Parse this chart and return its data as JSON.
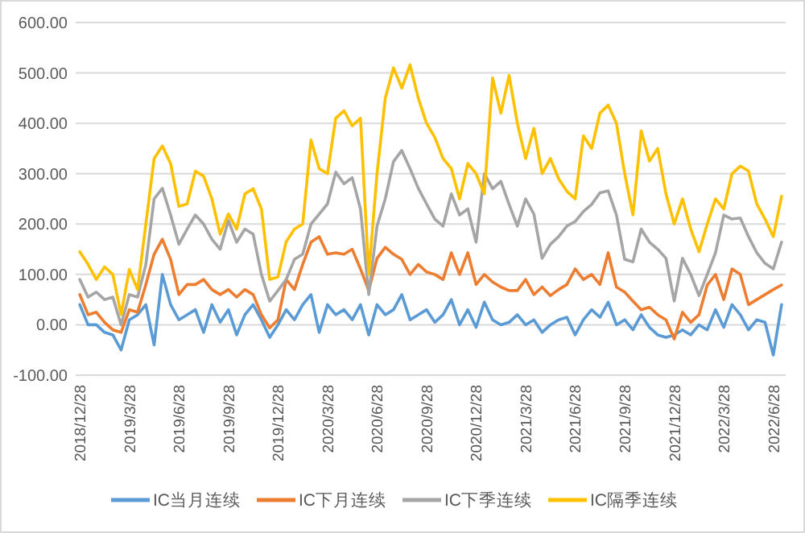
{
  "chart_data": {
    "type": "line",
    "categories": [
      "2018/12/28",
      null,
      null,
      null,
      null,
      null,
      "2019/3/28",
      null,
      null,
      null,
      null,
      null,
      "2019/6/28",
      null,
      null,
      null,
      null,
      null,
      "2019/9/28",
      null,
      null,
      null,
      null,
      null,
      "2019/12/28",
      null,
      null,
      null,
      null,
      null,
      "2020/3/28",
      null,
      null,
      null,
      null,
      null,
      "2020/6/28",
      null,
      null,
      null,
      null,
      null,
      "2020/9/28",
      null,
      null,
      null,
      null,
      null,
      "2020/12/28",
      null,
      null,
      null,
      null,
      null,
      "2021/3/28",
      null,
      null,
      null,
      null,
      null,
      "2021/6/28",
      null,
      null,
      null,
      null,
      null,
      "2021/9/28",
      null,
      null,
      null,
      null,
      null,
      "2021/12/28",
      null,
      null,
      null,
      null,
      null,
      "2022/3/28",
      null,
      null,
      null,
      null,
      null,
      "2022/6/28",
      null
    ],
    "series": [
      {
        "name": "IC当月连续",
        "color": "#5b9bd5",
        "values": [
          40,
          0,
          0,
          -15,
          -20,
          -50,
          10,
          20,
          40,
          -40,
          100,
          40,
          10,
          20,
          30,
          -15,
          40,
          5,
          30,
          -20,
          20,
          40,
          10,
          -25,
          0,
          30,
          10,
          40,
          60,
          -15,
          40,
          20,
          30,
          10,
          40,
          -20,
          40,
          20,
          30,
          60,
          10,
          20,
          30,
          5,
          20,
          50,
          0,
          30,
          -5,
          45,
          10,
          0,
          5,
          20,
          0,
          10,
          -15,
          0,
          10,
          15,
          -20,
          10,
          30,
          15,
          45,
          0,
          10,
          -10,
          20,
          -5,
          -20,
          -25,
          -20,
          -10,
          -20,
          0,
          -10,
          30,
          -5,
          40,
          20,
          -10,
          10,
          5,
          -60,
          40
        ]
      },
      {
        "name": "IC下月连续",
        "color": "#ed7d31",
        "values": [
          60,
          20,
          25,
          5,
          -10,
          -15,
          30,
          25,
          80,
          140,
          170,
          130,
          60,
          80,
          80,
          90,
          70,
          60,
          70,
          55,
          70,
          60,
          20,
          -6,
          10,
          90,
          70,
          120,
          164,
          175,
          140,
          143,
          140,
          150,
          111,
          68,
          132,
          154,
          140,
          130,
          100,
          120,
          105,
          100,
          90,
          143,
          100,
          143,
          80,
          100,
          85,
          75,
          68,
          68,
          90,
          60,
          75,
          58,
          70,
          80,
          111,
          90,
          100,
          80,
          143,
          75,
          65,
          47,
          30,
          35,
          20,
          10,
          -28,
          25,
          5,
          20,
          79,
          100,
          50,
          111,
          100,
          40,
          50,
          60,
          70,
          79
        ]
      },
      {
        "name": "IC下季连续",
        "color": "#a5a5a5",
        "values": [
          90,
          55,
          65,
          50,
          55,
          0,
          60,
          55,
          120,
          250,
          271,
          218,
          160,
          190,
          218,
          200,
          170,
          150,
          207,
          164,
          190,
          180,
          100,
          47,
          68,
          90,
          130,
          140,
          200,
          220,
          240,
          303,
          280,
          292,
          230,
          60,
          196,
          250,
          324,
          346,
          310,
          271,
          240,
          210,
          196,
          260,
          218,
          230,
          164,
          300,
          270,
          285,
          239,
          196,
          250,
          220,
          132,
          160,
          175,
          196,
          205,
          225,
          239,
          262,
          266,
          218,
          130,
          125,
          190,
          164,
          150,
          132,
          47,
          132,
          100,
          58,
          100,
          143,
          218,
          210,
          212,
          175,
          143,
          122,
          111,
          164
        ]
      },
      {
        "name": "IC隔季连续",
        "color": "#ffc000",
        "values": [
          145,
          120,
          90,
          115,
          100,
          20,
          110,
          70,
          200,
          330,
          355,
          320,
          235,
          240,
          305,
          295,
          250,
          180,
          220,
          190,
          260,
          270,
          230,
          90,
          95,
          165,
          190,
          200,
          367,
          310,
          300,
          410,
          425,
          395,
          410,
          100,
          300,
          450,
          510,
          470,
          516,
          450,
          400,
          372,
          330,
          310,
          250,
          320,
          300,
          260,
          490,
          420,
          495,
          400,
          330,
          390,
          300,
          330,
          290,
          265,
          250,
          375,
          350,
          420,
          436,
          400,
          300,
          218,
          385,
          325,
          350,
          260,
          200,
          250,
          190,
          145,
          200,
          250,
          230,
          300,
          315,
          305,
          240,
          210,
          175,
          255
        ]
      }
    ],
    "ylim": [
      -100,
      600
    ],
    "yticks": [
      {
        "value": -100,
        "label": "-100.00"
      },
      {
        "value": 0,
        "label": "0.00"
      },
      {
        "value": 100,
        "label": "100.00"
      },
      {
        "value": 200,
        "label": "200.00"
      },
      {
        "value": 300,
        "label": "300.00"
      },
      {
        "value": 400,
        "label": "400.00"
      },
      {
        "value": 500,
        "label": "500.00"
      },
      {
        "value": 600,
        "label": "600.00"
      }
    ],
    "grid": "y",
    "legend": "bottom"
  }
}
